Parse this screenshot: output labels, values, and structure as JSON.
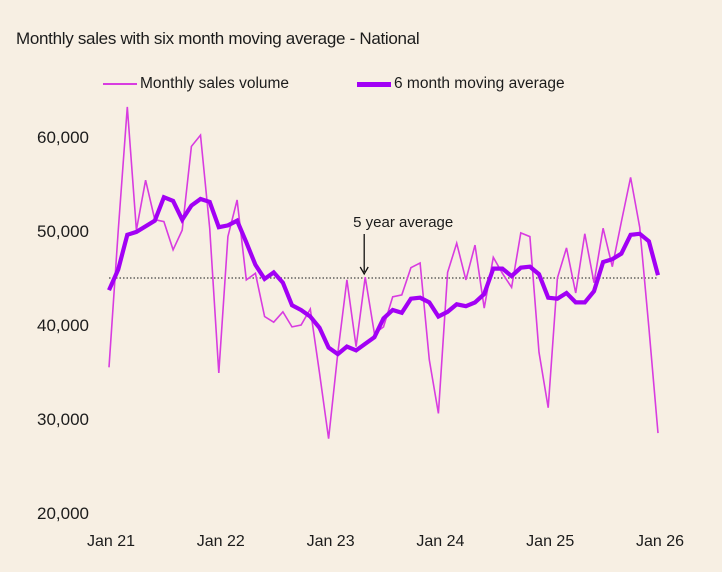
{
  "chart_data": {
    "type": "line",
    "title": "Monthly sales with six month moving average - National",
    "xlabel": "",
    "ylabel": "",
    "x_start": "Jan 21",
    "x_end": "Jan 26",
    "x_tick_labels": [
      "Jan 21",
      "Jan 22",
      "Jan 23",
      "Jan 24",
      "Jan 25",
      "Jan 26"
    ],
    "y_tick_labels": [
      "20,000",
      "30,000",
      "40,000",
      "50,000",
      "60,000"
    ],
    "y_ticks": [
      20000,
      30000,
      40000,
      50000,
      60000
    ],
    "ylim": [
      20000,
      60000
    ],
    "grid": false,
    "legend_position": "top",
    "series": [
      {
        "name": "Monthly sales volume",
        "color": "#d83ce0",
        "values": [
          35500,
          50000,
          63200,
          50100,
          55400,
          51200,
          51000,
          48000,
          50100,
          59000,
          60200,
          50300,
          34900,
          49400,
          53300,
          44800,
          45500,
          40900,
          40300,
          41400,
          39800,
          40000,
          41700,
          34900,
          27900,
          37000,
          44800,
          37700,
          45100,
          39100,
          39800,
          43000,
          43200,
          46100,
          46600,
          36300,
          30600,
          45600,
          48700,
          44800,
          48500,
          41800,
          47200,
          45500,
          44000,
          49800,
          49400,
          37100,
          31200,
          45000,
          48200,
          43400,
          49700,
          44500,
          50300,
          46200,
          51000,
          55700,
          50400,
          39700,
          28500
        ]
      },
      {
        "name": "6 month moving average",
        "color": "#a200f5",
        "values": [
          43700,
          45900,
          49600,
          49900,
          50500,
          51100,
          53600,
          53200,
          51200,
          52700,
          53400,
          53100,
          50400,
          50600,
          51100,
          48800,
          46400,
          44900,
          45600,
          44500,
          42100,
          41600,
          40900,
          39700,
          37600,
          36900,
          37700,
          37300,
          38000,
          38700,
          40700,
          41600,
          41300,
          42800,
          42900,
          42400,
          40900,
          41400,
          42200,
          42000,
          42400,
          43300,
          46000,
          46000,
          45200,
          46100,
          46200,
          45400,
          42900,
          42800,
          43400,
          42400,
          42400,
          43600,
          46700,
          47000,
          47600,
          49600,
          49700,
          48900,
          45300
        ]
      }
    ],
    "reference_line": {
      "value": 45000,
      "style": "dotted",
      "label": "5 year average",
      "label_month_index": 28
    }
  }
}
